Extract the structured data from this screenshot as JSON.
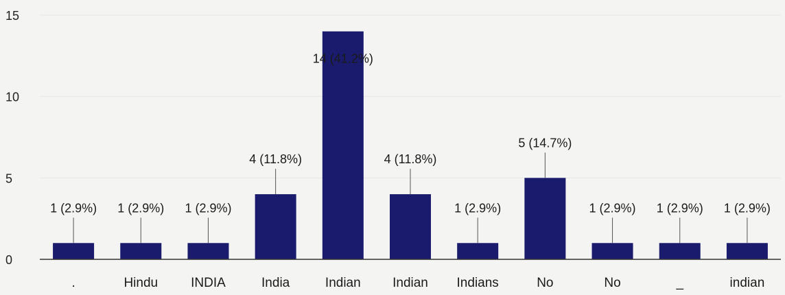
{
  "chart_data": {
    "type": "bar",
    "categories": [
      ".",
      "Hindu",
      "INDIA",
      "India",
      "Indian",
      "Indian",
      "Indians",
      "No",
      "No",
      "_",
      "indian"
    ],
    "values": [
      1,
      1,
      1,
      4,
      14,
      4,
      1,
      5,
      1,
      1,
      1
    ],
    "data_labels": [
      "1 (2.9%)",
      "1 (2.9%)",
      "1 (2.9%)",
      "4 (11.8%)",
      "14 (41.2%)",
      "4 (11.8%)",
      "1 (2.9%)",
      "5 (14.7%)",
      "1 (2.9%)",
      "1 (2.9%)",
      "1 (2.9%)"
    ],
    "yticks": [
      "0",
      "5",
      "10",
      "15"
    ],
    "ylim": [
      0,
      15
    ],
    "grid": true,
    "legend": "none",
    "colors": {
      "bar": "#1b1b6e",
      "axis": "#333333",
      "background": "#f4f4f2"
    }
  }
}
